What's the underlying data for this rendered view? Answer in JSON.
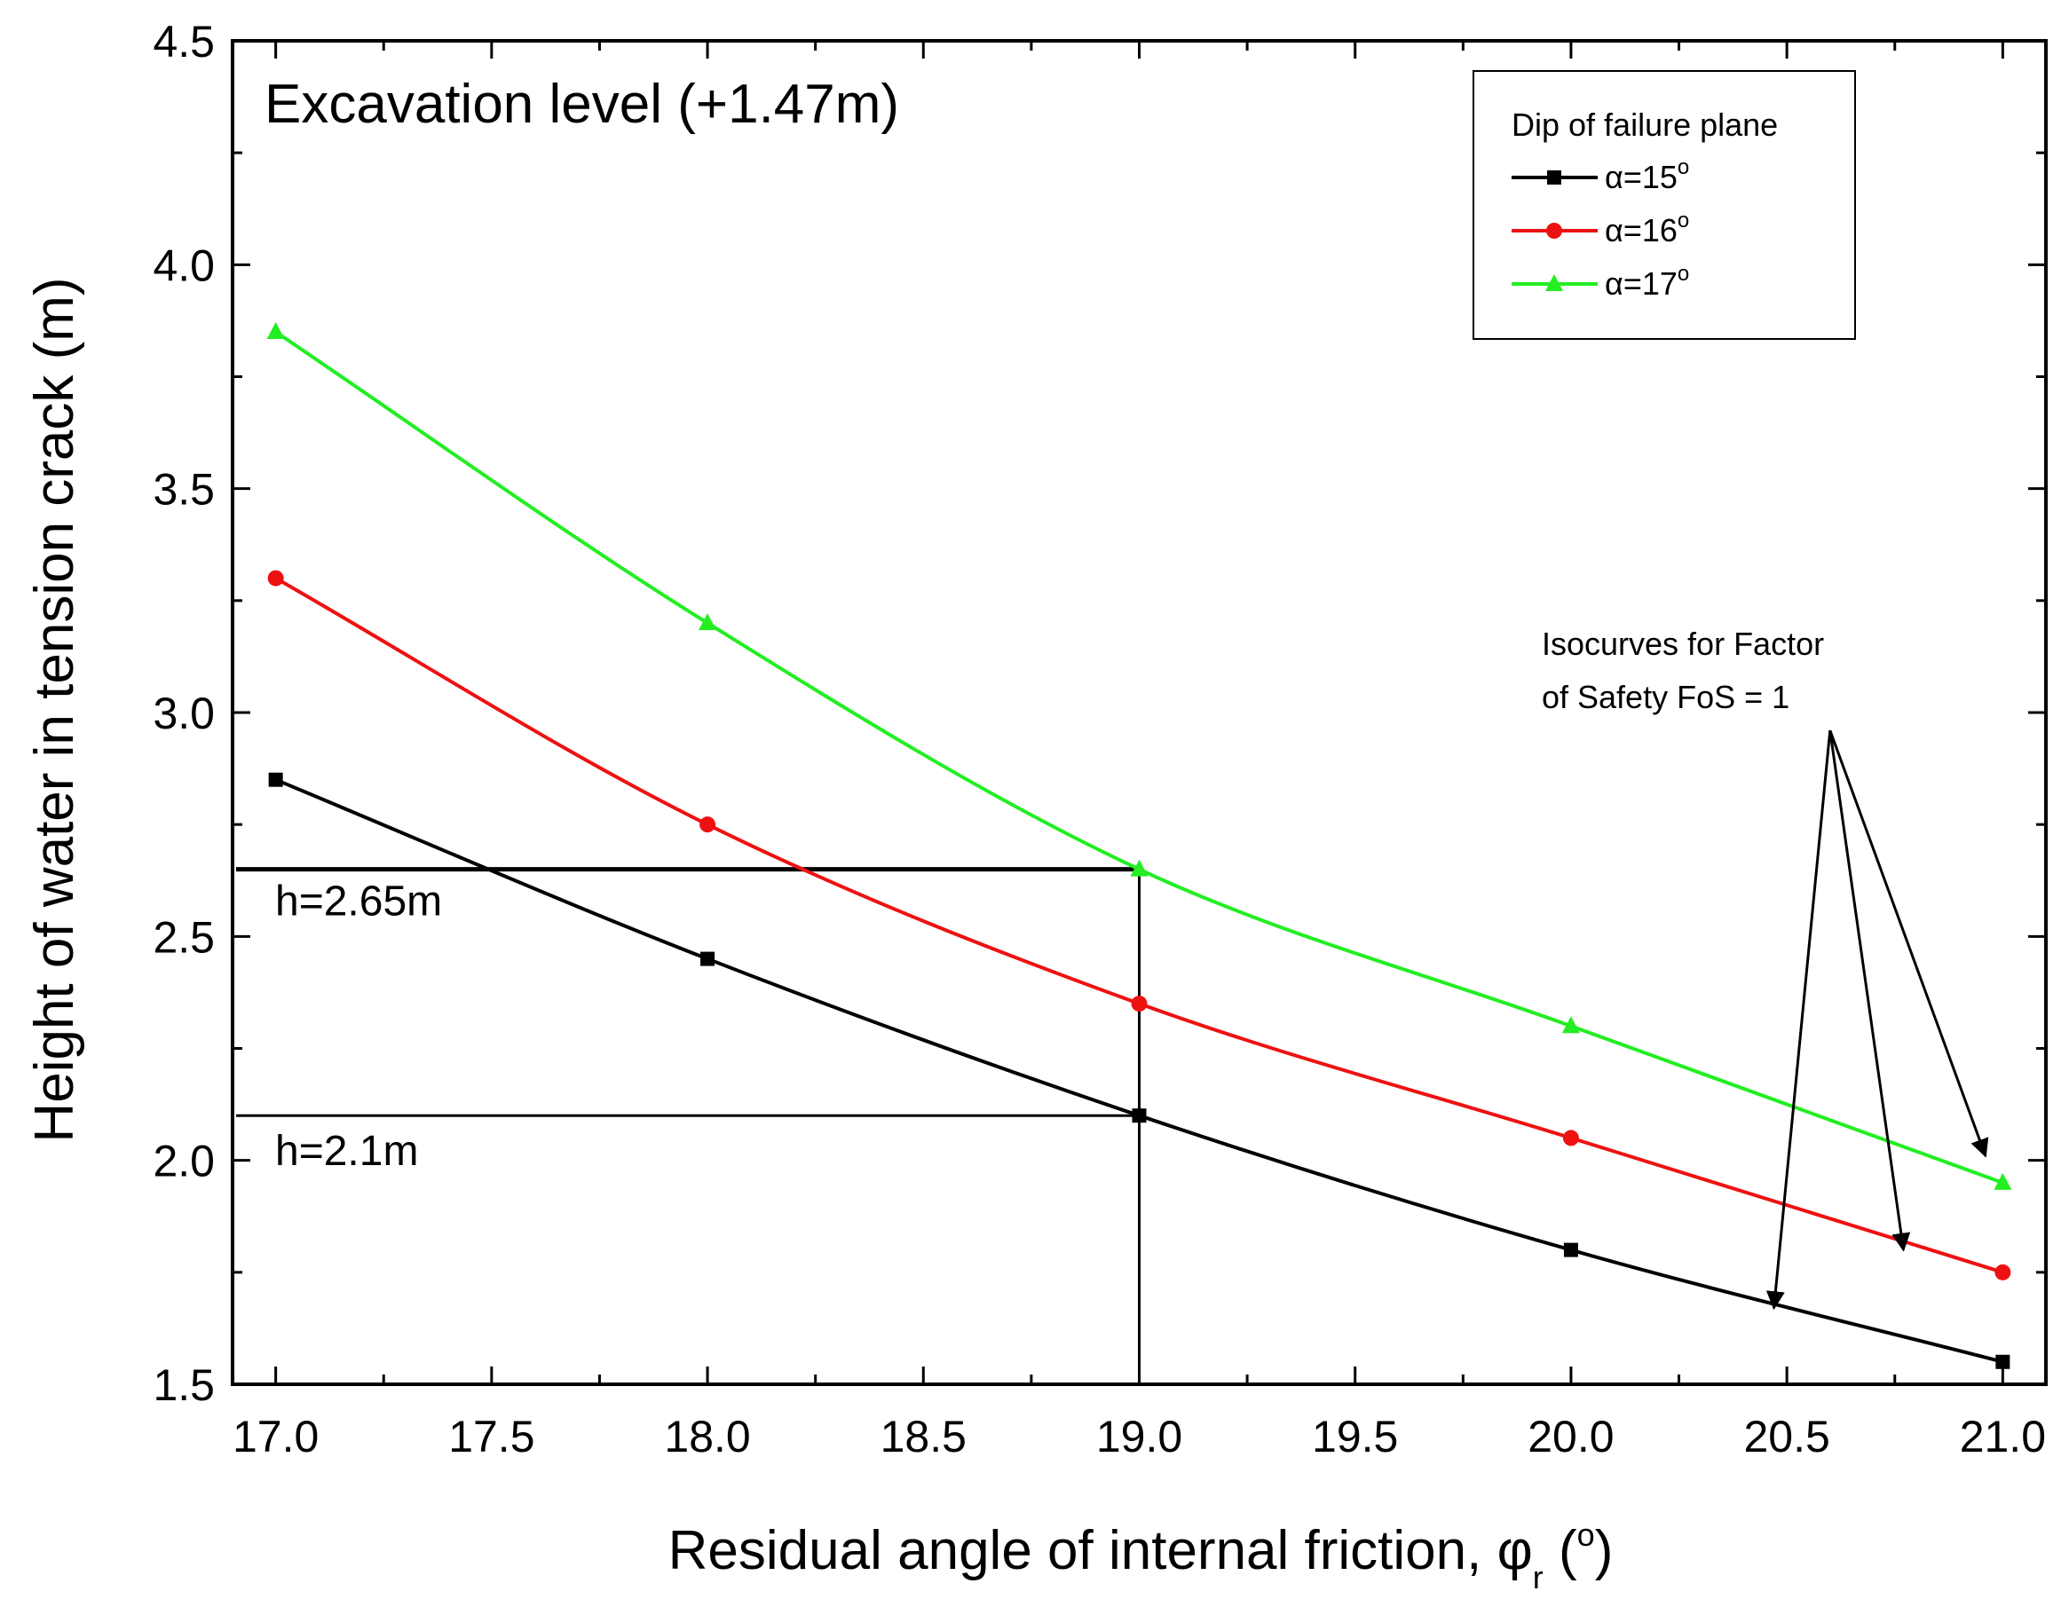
{
  "chart_data": {
    "type": "line",
    "title": "Excavation level (+1.47m)",
    "xlabel": "Residual angle of internal friction, φr (o)",
    "xlabel_main": "Residual angle of internal friction, φ",
    "xlabel_sub": "r",
    "xlabel_paren_open": " (",
    "xlabel_sup": "o",
    "xlabel_paren_close": ")",
    "ylabel": "Height of water in tension crack (m)",
    "xlim": [
      16.9,
      21.1
    ],
    "ylim": [
      1.5,
      4.5
    ],
    "xticks": [
      17.0,
      17.5,
      18.0,
      18.5,
      19.0,
      19.5,
      20.0,
      20.5,
      21.0
    ],
    "xtick_labels": [
      "17.0",
      "17.5",
      "18.0",
      "18.5",
      "19.0",
      "19.5",
      "20.0",
      "20.5",
      "21.0"
    ],
    "yticks": [
      1.5,
      2.0,
      2.5,
      3.0,
      3.5,
      4.0,
      4.5
    ],
    "ytick_labels": [
      "1.5",
      "2.0",
      "2.5",
      "3.0",
      "3.5",
      "4.0",
      "4.5"
    ],
    "x": [
      17,
      18,
      19,
      20,
      21
    ],
    "series": [
      {
        "name": "α=15",
        "label_main": "α=15",
        "label_sup": "o",
        "color": "#000000",
        "marker": "square",
        "values": [
          2.85,
          2.45,
          2.1,
          1.8,
          1.55
        ]
      },
      {
        "name": "α=16",
        "label_main": "α=16",
        "label_sup": "o",
        "color": "#ee1111",
        "marker": "circle",
        "values": [
          3.3,
          2.75,
          2.35,
          2.05,
          1.75
        ]
      },
      {
        "name": "α=17",
        "label_main": "α=17",
        "label_sup": "o",
        "color": "#22ee22",
        "marker": "triangle",
        "values": [
          3.85,
          3.2,
          2.65,
          2.3,
          1.95
        ]
      }
    ],
    "legend": {
      "title": "Dip of failure plane",
      "position": "top-right"
    },
    "reference_lines": [
      {
        "label": "h=2.65m",
        "x": 19.0,
        "y": 2.65
      },
      {
        "label": "h=2.1m",
        "x": 19.0,
        "y": 2.1
      }
    ],
    "annotation": {
      "lines": [
        "Isocurves for Factor",
        "of Safety FoS = 1"
      ],
      "arrow_origin": {
        "x": 20.6,
        "y": 2.96
      },
      "arrow_targets": [
        {
          "x": 20.47,
          "y": 1.67
        },
        {
          "x": 20.77,
          "y": 1.8
        },
        {
          "x": 20.96,
          "y": 2.01
        }
      ]
    }
  }
}
